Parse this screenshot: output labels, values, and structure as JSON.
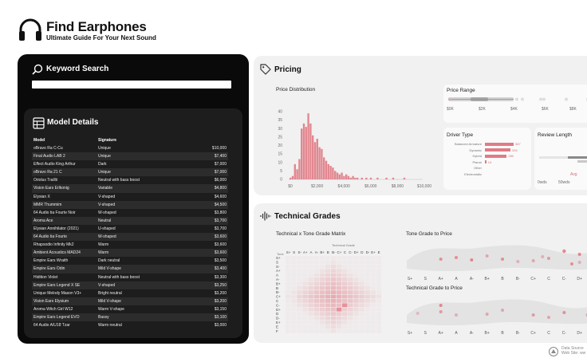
{
  "header": {
    "title": "Find Earphones",
    "subtitle": "Ultimate Guide For Your Next Sound"
  },
  "search": {
    "title": "Keyword Search",
    "placeholder": ""
  },
  "models": {
    "title": "Model Details",
    "columns": [
      "Model",
      "Signature"
    ],
    "rows": [
      {
        "model": "oBravo Ra C-Cu",
        "signature": "Unique",
        "price": "$10,000"
      },
      {
        "model": "Final Audio LAB 2",
        "signature": "Unique",
        "price": "$7,400"
      },
      {
        "model": "Effect Audio King Arthur",
        "signature": "Dark",
        "price": "$7,000"
      },
      {
        "model": "oBravo Ra 21 C",
        "signature": "Unique",
        "price": "$7,000"
      },
      {
        "model": "Oriolus Traillii",
        "signature": "Neutral with bass boost",
        "price": "$6,000"
      },
      {
        "model": "Vision Ears Erlkonig",
        "signature": "Variable",
        "price": "$4,800"
      },
      {
        "model": "Elysian X",
        "signature": "V-shaped",
        "price": "$4,600"
      },
      {
        "model": "MMR Thummim",
        "signature": "V-shaped",
        "price": "$4,500"
      },
      {
        "model": "64 Audio tia Fourte Noir",
        "signature": "W-shaped",
        "price": "$3,800"
      },
      {
        "model": "Aroma Ace",
        "signature": "Neutral",
        "price": "$3,700"
      },
      {
        "model": "Elysian Annihilator (2021)",
        "signature": "U-shaped",
        "price": "$3,700"
      },
      {
        "model": "64 Audio tia Fourte",
        "signature": "W-shaped",
        "price": "$3,600"
      },
      {
        "model": "Rhapsodio Infinity Mk2",
        "signature": "Warm",
        "price": "$3,600"
      },
      {
        "model": "Ambient Acoustics MAD24",
        "signature": "Warm",
        "price": "$3,600"
      },
      {
        "model": "Empire Ears Wraith",
        "signature": "Dark neutral",
        "price": "$3,500"
      },
      {
        "model": "Empire Ears Odin",
        "signature": "Mild V-shape",
        "price": "$3,400"
      },
      {
        "model": "Hidition Violet",
        "signature": "Neutral with bass boost",
        "price": "$3,300"
      },
      {
        "model": "Empire Ears Legend X SE",
        "signature": "V-shaped",
        "price": "$3,250"
      },
      {
        "model": "Unique Melody Mason V3+",
        "signature": "Bright neutral",
        "price": "$3,200"
      },
      {
        "model": "Vision Ears Elysium",
        "signature": "Mild V-shape",
        "price": "$3,200"
      },
      {
        "model": "Aroma Witch Girl W12",
        "signature": "Warm V-shape",
        "price": "$3,150"
      },
      {
        "model": "Empire Ears Legend EVO",
        "signature": "Bassy",
        "price": "$3,100"
      },
      {
        "model": "64 Audio A/U18 Tzar",
        "signature": "Warm neutral",
        "price": "$3,000"
      }
    ]
  },
  "pricing": {
    "title": "Pricing",
    "distribution": {
      "label": "Price Distribution",
      "y_ticks": [
        "40",
        "35",
        "30",
        "25",
        "20",
        "15",
        "10",
        "5",
        "0"
      ],
      "x_ticks": [
        "$0",
        "$2,000",
        "$4,000",
        "$6,000",
        "$8,000",
        "$10,000"
      ]
    },
    "range": {
      "label": "Price Range",
      "x_ticks": [
        "$0K",
        "$2K",
        "$4K",
        "$6K",
        "$8K"
      ]
    },
    "driver": {
      "label": "Driver Type",
      "items": [
        {
          "name": "Balanced Armature",
          "value": "367",
          "share": 1.0
        },
        {
          "name": "Dynamic",
          "value": "326",
          "share": 0.89
        },
        {
          "name": "Hybrid",
          "value": "280",
          "share": 0.76
        },
        {
          "name": "Planar",
          "value": "14",
          "share": 0.05
        },
        {
          "name": "Other",
          "value": "",
          "share": 0.0
        },
        {
          "name": "Electrostatic",
          "value": "",
          "share": 0.0
        }
      ]
    },
    "review": {
      "label": "Review Length",
      "ticks": [
        "0wds",
        "50wds"
      ],
      "avg_label": "Avg"
    }
  },
  "grades": {
    "title": "Technical Grades",
    "matrix": {
      "label": "Technical x Tone Grade Matrix",
      "top_label": "Technical Grade",
      "left_label": "Tone",
      "cols": [
        "S+",
        "S",
        "S-",
        "A+",
        "A",
        "A-",
        "B+",
        "B",
        "B-",
        "C+",
        "C",
        "C-",
        "D+",
        "D",
        "D-",
        "E+",
        "E"
      ],
      "rows": [
        "S+",
        "S",
        "S-",
        "A+",
        "A",
        "A-",
        "B+",
        "B",
        "B-",
        "C+",
        "C",
        "C-",
        "D+",
        "D",
        "D-",
        "E+",
        "E",
        "F"
      ]
    },
    "tone_to_price": {
      "label": "Tone Grade to Price",
      "ticks": [
        "S+",
        "S",
        "A+",
        "A",
        "A-",
        "B+",
        "B",
        "B-",
        "C+",
        "C",
        "C-",
        "D+",
        "D"
      ]
    },
    "technical_to_price": {
      "label": "Technical Grade to Price",
      "ticks": [
        "S+",
        "S",
        "A+",
        "A",
        "A-",
        "B+",
        "B",
        "B-",
        "C+",
        "C",
        "C-",
        "D+",
        "D"
      ]
    }
  },
  "histogram_bins": [
    1,
    2,
    9,
    6,
    12,
    30,
    33,
    31,
    39,
    33,
    26,
    22,
    24,
    19,
    18,
    13,
    11,
    9,
    8,
    7,
    5,
    4,
    3,
    4,
    2,
    3,
    2,
    1,
    2,
    1,
    1,
    0,
    1,
    0,
    1,
    0,
    1,
    0,
    0,
    1,
    0,
    0,
    0,
    1,
    0,
    0,
    1,
    0,
    0,
    0,
    0,
    1
  ],
  "footer": {
    "line1": "Data Source",
    "line2": "Web Site: ww"
  },
  "colors": {
    "accent": "#e07b85",
    "accent_light": "#f3c9cd",
    "dark_panel": "#0a0a0a",
    "light_panel": "#f1f1f1"
  }
}
